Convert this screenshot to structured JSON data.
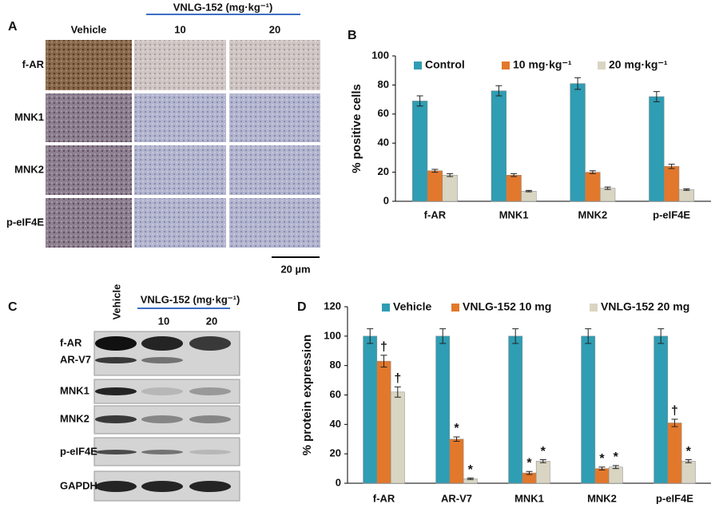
{
  "panel_a": {
    "letter": "A",
    "header": "VNLG-152 (mg·kg⁻¹)",
    "columns": [
      "Vehicle",
      "10",
      "20"
    ],
    "rows": [
      "f-AR",
      "MNK1",
      "MNK2",
      "p-eIF4E"
    ],
    "scale_bar": "20 µm"
  },
  "panel_c": {
    "letter": "C",
    "header": "VNLG-152 (mg·kg⁻¹)",
    "lanes": [
      "Vehicle",
      "10",
      "20"
    ],
    "rows": [
      "f-AR",
      "AR-V7",
      "MNK1",
      "MNK2",
      "p-eIF4E",
      "GAPDH"
    ]
  },
  "chart_data": [
    {
      "type": "bar",
      "letter": "B",
      "ylabel": "% positive cells",
      "categories": [
        "f-AR",
        "MNK1",
        "MNK2",
        "p-eIF4E"
      ],
      "series": [
        {
          "name": "Control",
          "color": "#2f9db3",
          "values": [
            69,
            76,
            81,
            72
          ],
          "errors": [
            3.5,
            3.5,
            4,
            3.5
          ]
        },
        {
          "name": "10 mg·kg⁻¹",
          "color": "#e2782c",
          "values": [
            21,
            18,
            20,
            24
          ],
          "errors": [
            1,
            1,
            1,
            1.5
          ]
        },
        {
          "name": "20 mg·kg⁻¹",
          "color": "#d9d5c3",
          "values": [
            18,
            7,
            9,
            8
          ],
          "errors": [
            1,
            0.5,
            0.8,
            0.5
          ]
        }
      ],
      "ylim": [
        0,
        100
      ],
      "yticks": [
        0,
        20,
        40,
        60,
        80,
        100
      ],
      "legend": "top"
    },
    {
      "type": "bar",
      "letter": "D",
      "ylabel": "% protein expression",
      "categories": [
        "f-AR",
        "AR-V7",
        "MNK1",
        "MNK2",
        "p-eIF4E"
      ],
      "series": [
        {
          "name": "Vehicle",
          "color": "#2f9db3",
          "values": [
            100,
            100,
            100,
            100,
            100
          ],
          "errors": [
            5,
            5,
            5,
            5,
            5
          ]
        },
        {
          "name": "VNLG-152 10 mg",
          "color": "#e2782c",
          "values": [
            83,
            30,
            7,
            10,
            41
          ],
          "errors": [
            4,
            1.5,
            1,
            1,
            2.5
          ],
          "markers": [
            "†",
            "*",
            "*",
            "*",
            "†"
          ]
        },
        {
          "name": "VNLG-152 20 mg",
          "color": "#d9d5c3",
          "values": [
            62,
            3,
            15,
            11,
            15
          ],
          "errors": [
            3.5,
            0.5,
            1,
            1,
            1
          ],
          "markers": [
            "†",
            "*",
            "*",
            "*",
            "*"
          ]
        }
      ],
      "ylim": [
        0,
        120
      ],
      "yticks": [
        0,
        20,
        40,
        60,
        80,
        100,
        120
      ],
      "legend": "top"
    }
  ]
}
